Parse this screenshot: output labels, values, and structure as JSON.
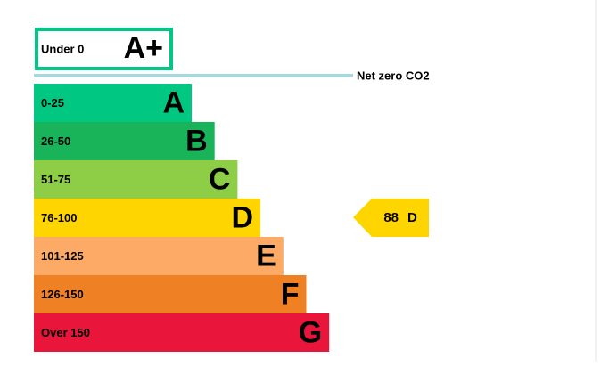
{
  "top_band": {
    "range": "Under 0",
    "rating": "A+",
    "color": "#00c781"
  },
  "net_zero": {
    "label": "Net zero CO2",
    "color": "#a8d8df"
  },
  "bands": [
    {
      "range": "0-25",
      "rating": "A",
      "color": "#00c781"
    },
    {
      "range": "26-50",
      "rating": "B",
      "color": "#19b459"
    },
    {
      "range": "51-75",
      "rating": "C",
      "color": "#8dce46"
    },
    {
      "range": "76-100",
      "rating": "D",
      "color": "#ffd500"
    },
    {
      "range": "101-125",
      "rating": "E",
      "color": "#fcaa65"
    },
    {
      "range": "126-150",
      "rating": "F",
      "color": "#ef8023"
    },
    {
      "range": "Over 150",
      "rating": "G",
      "color": "#e9153b"
    }
  ],
  "current": {
    "value": 88,
    "rating": "D",
    "color": "#ffd500"
  }
}
